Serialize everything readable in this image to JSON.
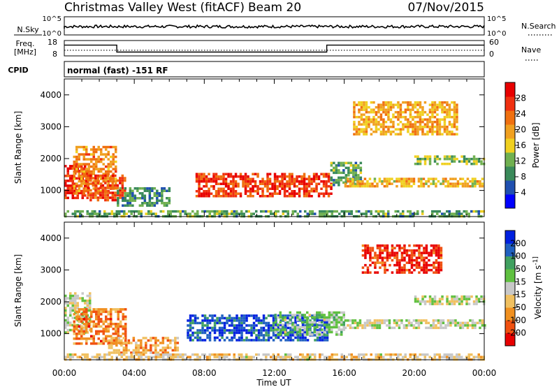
{
  "header": {
    "title": "Christmas Valley West (fitACF)",
    "beam": "Beam 20",
    "date": "07/Nov/2015"
  },
  "noise_panel": {
    "left_label": "N.Sky",
    "right_label": "N.Search",
    "left_ticks": [
      "10^5",
      "10^0"
    ],
    "right_ticks": [
      "10^5",
      "10^0"
    ]
  },
  "freq_panel": {
    "left_label_line1": "Freq.",
    "left_label_line2": "[MHz]",
    "right_label": "Nave",
    "left_ticks": [
      "18",
      "8"
    ],
    "right_ticks": [
      "60",
      "0"
    ],
    "freq_steps": [
      {
        "t": 0.0,
        "mhz": 15.0
      },
      {
        "t": 3.0,
        "mhz": 10.5
      },
      {
        "t": 15.0,
        "mhz": 15.0
      },
      {
        "t": 24.0,
        "mhz": 15.0
      }
    ],
    "nave_level": 22
  },
  "cpid": {
    "label": "CPID",
    "text": "normal (fast) -151 RF"
  },
  "x_axis": {
    "ticks": [
      "00:00",
      "04:00",
      "08:00",
      "12:00",
      "16:00",
      "20:00",
      "00:00"
    ],
    "label": "Time UT"
  },
  "colors": {
    "power_scale": [
      "#0000ff",
      "#2050b0",
      "#3a8a5a",
      "#70b050",
      "#f0d020",
      "#f0a020",
      "#f07010",
      "#f03010",
      "#e80000"
    ],
    "velocity_scale": [
      "#e80000",
      "#f05010",
      "#f09020",
      "#f0c060",
      "#c8c8c8",
      "#60c040",
      "#40a060",
      "#2060c0",
      "#0020e0"
    ]
  },
  "chart_data": [
    {
      "type": "heatmap",
      "title": "",
      "xlabel": "",
      "ylabel": "Slant Range [km]",
      "xlim": [
        0,
        24
      ],
      "ylim": [
        180,
        4500
      ],
      "yticks": [
        "1000",
        "2000",
        "3000",
        "4000"
      ],
      "colorbar": {
        "label": "Power [dB]",
        "ticks": [
          "4",
          "8",
          "12",
          "16",
          "20",
          "24",
          "28"
        ],
        "range": [
          0,
          30
        ]
      },
      "regions": [
        {
          "t0": 0.0,
          "t1": 1.3,
          "r0": 800,
          "r1": 1800,
          "value": 27
        },
        {
          "t0": 0.5,
          "t1": 3.0,
          "r0": 900,
          "r1": 2400,
          "value": 20
        },
        {
          "t0": 1.3,
          "t1": 3.5,
          "r0": 700,
          "r1": 1500,
          "value": 24
        },
        {
          "t0": 3.0,
          "t1": 6.0,
          "r0": 500,
          "r1": 1100,
          "value": 9
        },
        {
          "t0": 7.5,
          "t1": 15.2,
          "r0": 850,
          "r1": 1550,
          "value": 25
        },
        {
          "t0": 15.2,
          "t1": 17.0,
          "r0": 1200,
          "r1": 1900,
          "value": 10
        },
        {
          "t0": 16.0,
          "t1": 24.0,
          "r0": 1150,
          "r1": 1400,
          "value": 17
        },
        {
          "t0": 16.5,
          "t1": 22.5,
          "r0": 2800,
          "r1": 3800,
          "value": 18
        },
        {
          "t0": 20.0,
          "t1": 24.0,
          "r0": 1800,
          "r1": 2100,
          "value": 12
        },
        {
          "t0": 0.0,
          "t1": 24.0,
          "r0": 180,
          "r1": 380,
          "value": 10
        }
      ]
    },
    {
      "type": "heatmap",
      "title": "",
      "xlabel": "Time UT",
      "ylabel": "Slant Range [km]",
      "xlim": [
        0,
        24
      ],
      "ylim": [
        180,
        4500
      ],
      "yticks": [
        "1000",
        "2000",
        "3000",
        "4000"
      ],
      "colorbar": {
        "label": "Velocity [m s^-1]",
        "ticks": [
          "200",
          "100",
          "50",
          "15",
          "-15",
          "-50",
          "-100",
          "-200"
        ],
        "range": [
          -250,
          250
        ]
      },
      "regions": [
        {
          "t0": 0.0,
          "t1": 1.5,
          "r0": 1000,
          "r1": 2300,
          "value": 0
        },
        {
          "t0": 0.5,
          "t1": 3.5,
          "r0": 700,
          "r1": 1800,
          "value": -130
        },
        {
          "t0": 2.5,
          "t1": 6.5,
          "r0": 400,
          "r1": 900,
          "value": -90
        },
        {
          "t0": 7.0,
          "t1": 15.0,
          "r0": 800,
          "r1": 1600,
          "value": 180
        },
        {
          "t0": 12.0,
          "t1": 16.0,
          "r0": 1000,
          "r1": 1700,
          "value": 40
        },
        {
          "t0": 16.0,
          "t1": 24.0,
          "r0": 1200,
          "r1": 1450,
          "value": 0
        },
        {
          "t0": 17.0,
          "t1": 21.5,
          "r0": 2900,
          "r1": 3800,
          "value": -200
        },
        {
          "t0": 20.0,
          "t1": 24.0,
          "r0": 1900,
          "r1": 2200,
          "value": 0
        },
        {
          "t0": 0.0,
          "t1": 24.0,
          "r0": 180,
          "r1": 380,
          "value": -40
        }
      ]
    }
  ]
}
